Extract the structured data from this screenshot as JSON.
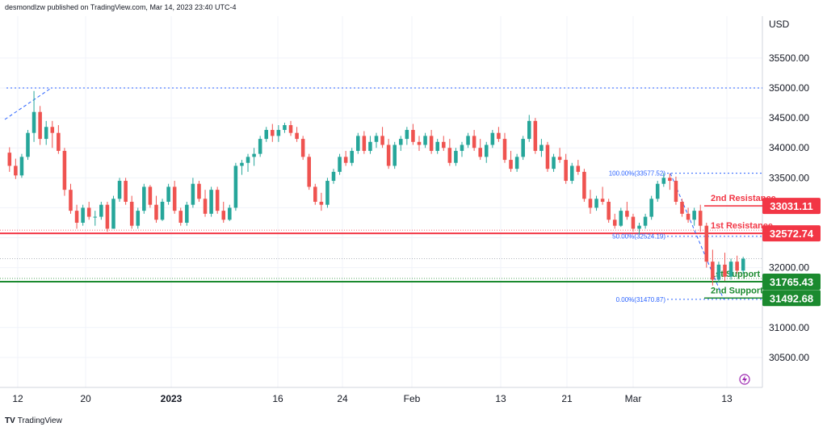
{
  "header": {
    "publisher": "desmondlzw published on TradingView.com, Mar 14, 2023 23:40 UTC-4"
  },
  "footer": {
    "logo_mark": "TV",
    "logo_text": "TradingView"
  },
  "colors": {
    "up": "#26a69a",
    "down": "#ef5350",
    "resistance": "#f23645",
    "support": "#1b8a2f",
    "fib": "#2962ff",
    "grid": "#f0f3fa",
    "axis_text": "#131722",
    "flash": "#9c27b0"
  },
  "chart_data": {
    "type": "candlestick",
    "currency_label": "USD",
    "ylim": [
      30000,
      36200
    ],
    "y_ticks": [
      "30500.00",
      "31000.00",
      "32000.00",
      "32500.00",
      "33000.00",
      "33500.00",
      "34000.00",
      "34500.00",
      "35000.00",
      "35500.00"
    ],
    "x_ticks": [
      "12",
      "20",
      "2023",
      "16",
      "24",
      "Feb",
      "13",
      "21",
      "Mar",
      "13"
    ],
    "horizontal_levels": [
      {
        "label": "2nd Resistance",
        "value": 33031.11,
        "tag": "33031.11",
        "color": "resistance"
      },
      {
        "label": "1st Resistance",
        "value": 32572.74,
        "tag": "32572.74",
        "color": "resistance"
      },
      {
        "label": "1st Support",
        "value": 31765.43,
        "tag": "31765.43",
        "color": "support"
      },
      {
        "label": "2nd Support",
        "value": 31492.68,
        "tag": "31492.68",
        "color": "support"
      }
    ],
    "fib_levels": [
      {
        "label": "100.00%(33577.52)",
        "value": 33577.52
      },
      {
        "label": "50.00%(32524.19)",
        "value": 32524.19
      },
      {
        "label": "0.00%(31470.87)",
        "value": 31470.87
      }
    ],
    "dotted_level": 35000,
    "dotted_level_2": 32150,
    "candles": [
      [
        33920,
        34010,
        33600,
        33700
      ],
      [
        33700,
        33820,
        33480,
        33540
      ],
      [
        33540,
        33900,
        33500,
        33850
      ],
      [
        33850,
        34300,
        33800,
        34250
      ],
      [
        34250,
        34950,
        34100,
        34600
      ],
      [
        34600,
        34700,
        34050,
        34150
      ],
      [
        34150,
        34450,
        34050,
        34350
      ],
      [
        34350,
        34450,
        34000,
        34250
      ],
      [
        34250,
        34380,
        33900,
        33950
      ],
      [
        33950,
        34000,
        33200,
        33300
      ],
      [
        33300,
        33400,
        32900,
        32950
      ],
      [
        32950,
        33050,
        32650,
        32750
      ],
      [
        32750,
        33050,
        32700,
        33000
      ],
      [
        33000,
        33100,
        32800,
        32850
      ],
      [
        32850,
        32950,
        32700,
        32850
      ],
      [
        32850,
        33100,
        32800,
        33050
      ],
      [
        33050,
        33100,
        32600,
        32650
      ],
      [
        32650,
        33200,
        32650,
        33150
      ],
      [
        33150,
        33500,
        33100,
        33450
      ],
      [
        33450,
        33500,
        33050,
        33100
      ],
      [
        33100,
        33200,
        32650,
        32700
      ],
      [
        32700,
        33000,
        32650,
        32950
      ],
      [
        32950,
        33400,
        32900,
        33350
      ],
      [
        33350,
        33380,
        33000,
        33050
      ],
      [
        33050,
        33200,
        32750,
        32800
      ],
      [
        32800,
        33150,
        32780,
        33100
      ],
      [
        33100,
        33400,
        33050,
        33350
      ],
      [
        33350,
        33450,
        32900,
        32950
      ],
      [
        32950,
        33000,
        32700,
        32750
      ],
      [
        32750,
        33100,
        32700,
        33050
      ],
      [
        33050,
        33500,
        33000,
        33400
      ],
      [
        33400,
        33450,
        33100,
        33150
      ],
      [
        33150,
        33300,
        32850,
        32900
      ],
      [
        32900,
        33350,
        32850,
        33300
      ],
      [
        33300,
        33350,
        32900,
        32950
      ],
      [
        32950,
        33100,
        32750,
        32800
      ],
      [
        32800,
        33050,
        32780,
        33000
      ],
      [
        33000,
        33750,
        32950,
        33700
      ],
      [
        33700,
        33800,
        33550,
        33750
      ],
      [
        33750,
        33900,
        33600,
        33850
      ],
      [
        33850,
        34000,
        33700,
        33900
      ],
      [
        33900,
        34200,
        33850,
        34150
      ],
      [
        34150,
        34350,
        34100,
        34300
      ],
      [
        34300,
        34400,
        34100,
        34200
      ],
      [
        34200,
        34380,
        34100,
        34300
      ],
      [
        34300,
        34420,
        34250,
        34380
      ],
      [
        34380,
        34450,
        34200,
        34250
      ],
      [
        34250,
        34350,
        34100,
        34150
      ],
      [
        34150,
        34200,
        33800,
        33850
      ],
      [
        33850,
        33900,
        33300,
        33350
      ],
      [
        33350,
        33400,
        33050,
        33100
      ],
      [
        33100,
        33250,
        32950,
        33050
      ],
      [
        33050,
        33500,
        33000,
        33450
      ],
      [
        33450,
        33650,
        33400,
        33600
      ],
      [
        33600,
        33900,
        33550,
        33850
      ],
      [
        33850,
        33950,
        33700,
        33750
      ],
      [
        33750,
        34000,
        33700,
        33950
      ],
      [
        33950,
        34250,
        33900,
        34200
      ],
      [
        34200,
        34280,
        33900,
        33950
      ],
      [
        33950,
        34200,
        33900,
        34100
      ],
      [
        34100,
        34250,
        34000,
        34200
      ],
      [
        34200,
        34350,
        34000,
        34050
      ],
      [
        34050,
        34150,
        33650,
        33700
      ],
      [
        33700,
        34100,
        33650,
        34050
      ],
      [
        34050,
        34200,
        33950,
        34150
      ],
      [
        34150,
        34350,
        34050,
        34300
      ],
      [
        34300,
        34400,
        34050,
        34100
      ],
      [
        34100,
        34200,
        33950,
        34050
      ],
      [
        34050,
        34250,
        34000,
        34200
      ],
      [
        34200,
        34300,
        33900,
        33950
      ],
      [
        33950,
        34150,
        33900,
        34100
      ],
      [
        34100,
        34200,
        33950,
        34000
      ],
      [
        34000,
        34150,
        33700,
        33750
      ],
      [
        33750,
        34000,
        33700,
        33950
      ],
      [
        33950,
        34100,
        33850,
        34050
      ],
      [
        34050,
        34250,
        34000,
        34200
      ],
      [
        34200,
        34300,
        33950,
        34000
      ],
      [
        34000,
        34150,
        33800,
        33850
      ],
      [
        33850,
        34100,
        33750,
        34050
      ],
      [
        34050,
        34300,
        34000,
        34250
      ],
      [
        34250,
        34350,
        34100,
        34150
      ],
      [
        34150,
        34250,
        33750,
        33800
      ],
      [
        33800,
        33950,
        33600,
        33650
      ],
      [
        33650,
        33900,
        33600,
        33850
      ],
      [
        33850,
        34200,
        33800,
        34150
      ],
      [
        34150,
        34550,
        34100,
        34450
      ],
      [
        34450,
        34500,
        33900,
        33950
      ],
      [
        33950,
        34150,
        33850,
        34050
      ],
      [
        34050,
        34100,
        33600,
        33650
      ],
      [
        33650,
        33900,
        33600,
        33850
      ],
      [
        33850,
        34000,
        33750,
        33800
      ],
      [
        33800,
        33900,
        33400,
        33450
      ],
      [
        33450,
        33750,
        33400,
        33700
      ],
      [
        33700,
        33800,
        33550,
        33600
      ],
      [
        33600,
        33650,
        33100,
        33150
      ],
      [
        33150,
        33300,
        32900,
        33000
      ],
      [
        33000,
        33200,
        32950,
        33150
      ],
      [
        33150,
        33350,
        33050,
        33100
      ],
      [
        33100,
        33150,
        32750,
        32800
      ],
      [
        32800,
        32900,
        32650,
        32700
      ],
      [
        32700,
        33000,
        32680,
        32950
      ],
      [
        32950,
        33100,
        32800,
        32850
      ],
      [
        32850,
        32900,
        32600,
        32650
      ],
      [
        32650,
        32750,
        32550,
        32700
      ],
      [
        32700,
        32900,
        32650,
        32850
      ],
      [
        32850,
        33200,
        32800,
        33150
      ],
      [
        33150,
        33450,
        33100,
        33400
      ],
      [
        33400,
        33580,
        33350,
        33500
      ],
      [
        33500,
        33570,
        33300,
        33450
      ],
      [
        33450,
        33520,
        33050,
        33100
      ],
      [
        33100,
        33150,
        32850,
        32900
      ],
      [
        32900,
        33000,
        32750,
        32800
      ],
      [
        32800,
        33000,
        32700,
        32950
      ],
      [
        32950,
        33050,
        32600,
        32700
      ],
      [
        32700,
        32750,
        32000,
        32100
      ],
      [
        32100,
        32300,
        31700,
        31800
      ],
      [
        31800,
        32100,
        31750,
        32050
      ],
      [
        32050,
        32250,
        31780,
        31850
      ],
      [
        31850,
        32150,
        31800,
        32100
      ],
      [
        32100,
        32200,
        31900,
        31950
      ],
      [
        31950,
        32180,
        31900,
        32150
      ]
    ]
  }
}
